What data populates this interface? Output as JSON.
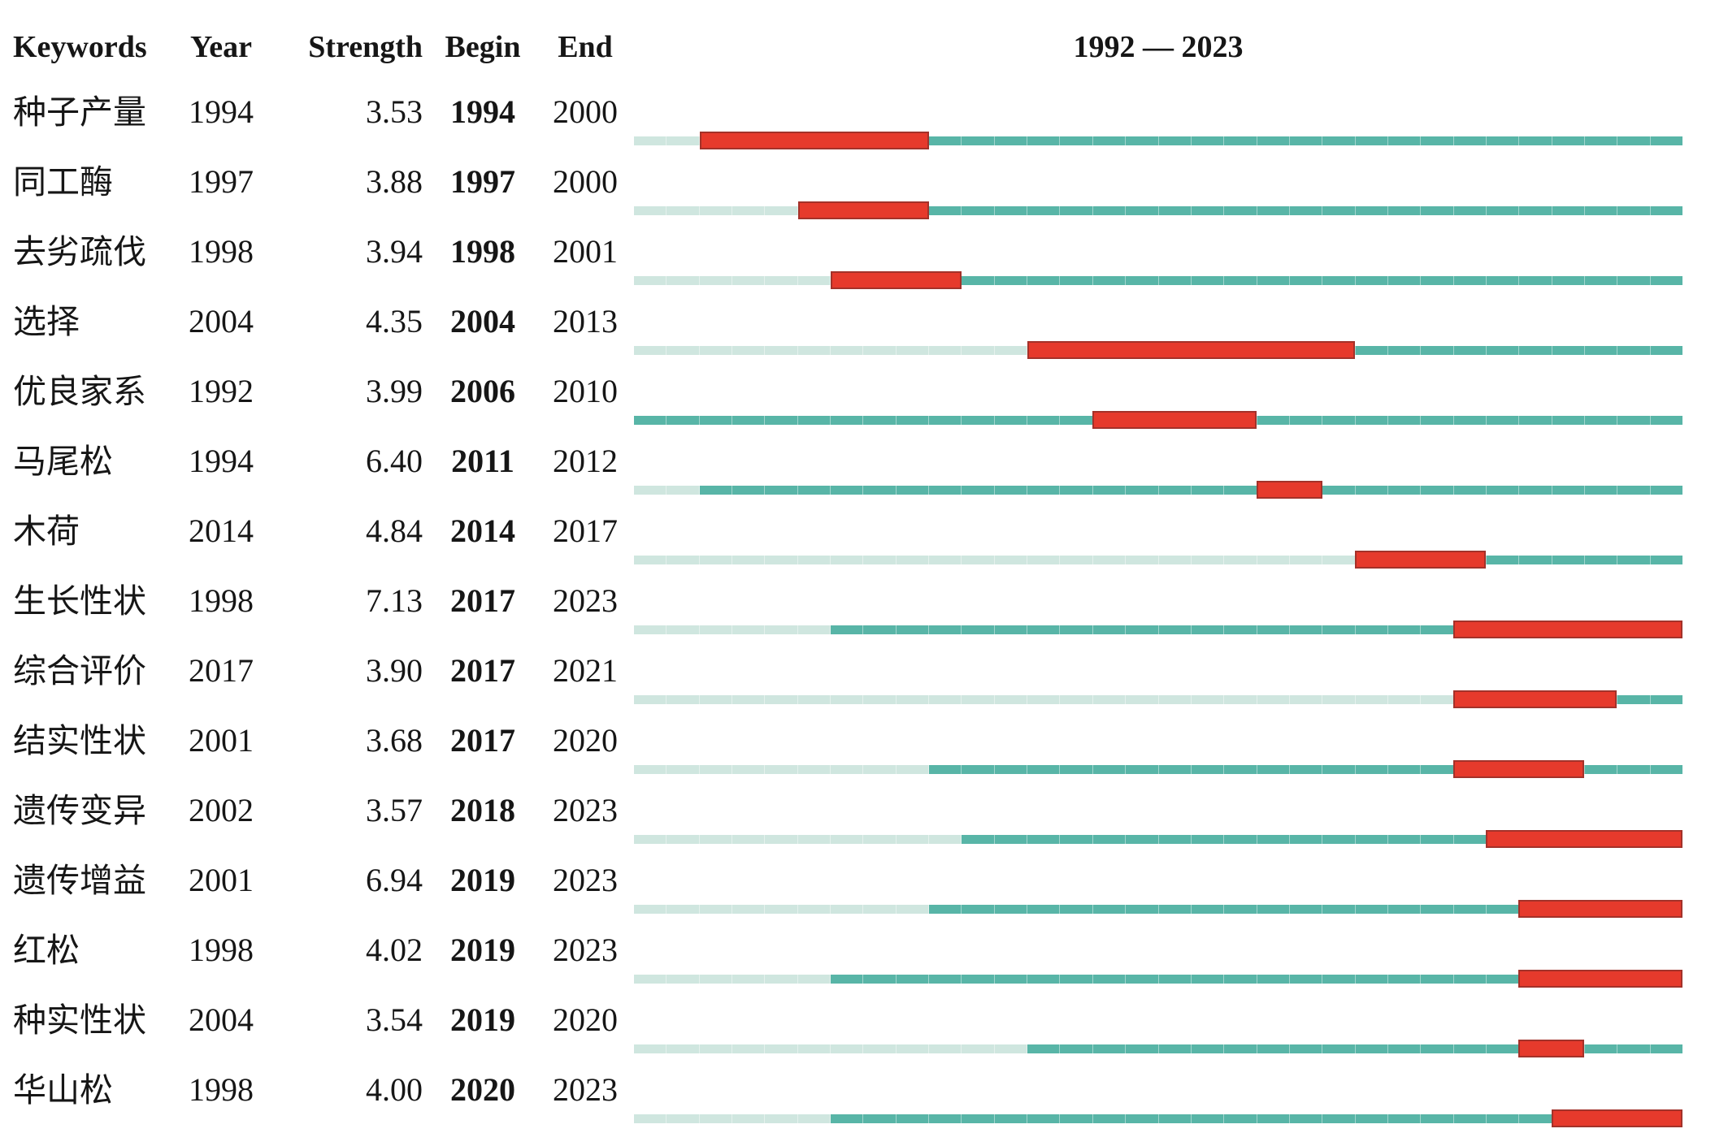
{
  "header": {
    "col_keywords": "Keywords",
    "col_year": "Year",
    "col_strength": "Strength",
    "col_begin": "Begin",
    "col_end": "End",
    "timeline_title": "1992 — 2023"
  },
  "chart_data": {
    "type": "bar",
    "subtype": "keyword-burst-timeline",
    "title": "1992 — 2023",
    "columns": [
      "Keywords",
      "Year",
      "Strength",
      "Begin",
      "End"
    ],
    "x_range": [
      1992,
      2023
    ],
    "legend": {
      "pre_appearance_color": "#cfe6df",
      "active_color": "#58b5a7",
      "burst_color": "#e63a2c"
    },
    "rows": [
      {
        "keyword": "种子产量",
        "year": 1994,
        "strength": "3.53",
        "begin": 1994,
        "end": 2000
      },
      {
        "keyword": "同工酶",
        "year": 1997,
        "strength": "3.88",
        "begin": 1997,
        "end": 2000
      },
      {
        "keyword": "去劣疏伐",
        "year": 1998,
        "strength": "3.94",
        "begin": 1998,
        "end": 2001
      },
      {
        "keyword": "选择",
        "year": 2004,
        "strength": "4.35",
        "begin": 2004,
        "end": 2013
      },
      {
        "keyword": "优良家系",
        "year": 1992,
        "strength": "3.99",
        "begin": 2006,
        "end": 2010
      },
      {
        "keyword": "马尾松",
        "year": 1994,
        "strength": "6.40",
        "begin": 2011,
        "end": 2012
      },
      {
        "keyword": "木荷",
        "year": 2014,
        "strength": "4.84",
        "begin": 2014,
        "end": 2017
      },
      {
        "keyword": "生长性状",
        "year": 1998,
        "strength": "7.13",
        "begin": 2017,
        "end": 2023
      },
      {
        "keyword": "综合评价",
        "year": 2017,
        "strength": "3.90",
        "begin": 2017,
        "end": 2021
      },
      {
        "keyword": "结实性状",
        "year": 2001,
        "strength": "3.68",
        "begin": 2017,
        "end": 2020
      },
      {
        "keyword": "遗传变异",
        "year": 2002,
        "strength": "3.57",
        "begin": 2018,
        "end": 2023
      },
      {
        "keyword": "遗传增益",
        "year": 2001,
        "strength": "6.94",
        "begin": 2019,
        "end": 2023
      },
      {
        "keyword": "红松",
        "year": 1998,
        "strength": "4.02",
        "begin": 2019,
        "end": 2023
      },
      {
        "keyword": "种实性状",
        "year": 2004,
        "strength": "3.54",
        "begin": 2019,
        "end": 2020
      },
      {
        "keyword": "华山松",
        "year": 1998,
        "strength": "4.00",
        "begin": 2020,
        "end": 2023
      }
    ]
  }
}
